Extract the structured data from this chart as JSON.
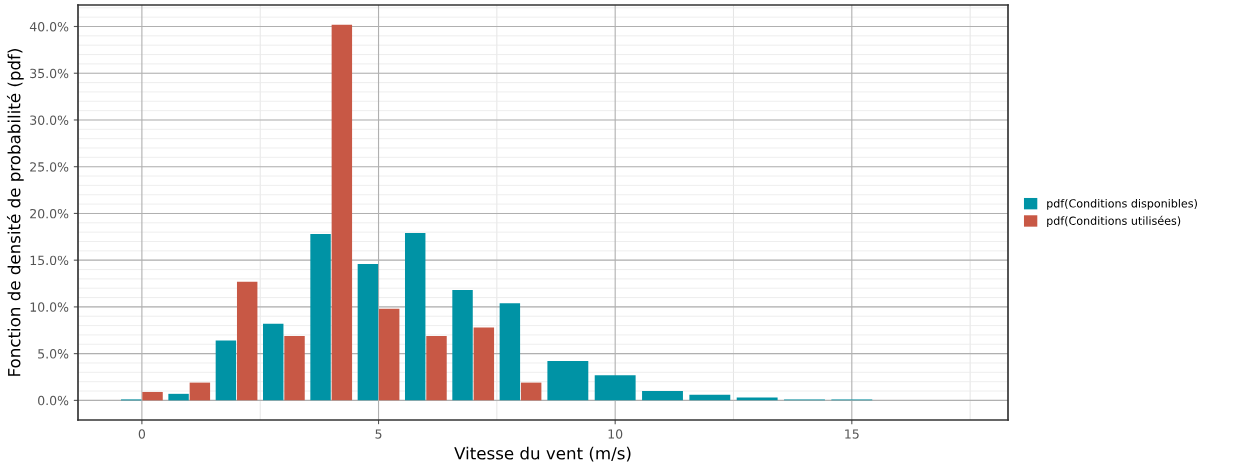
{
  "chart_data": {
    "type": "bar",
    "xlabel": "Vitesse du vent (m/s)",
    "ylabel": "Fonction de densité de probabilité (pdf)",
    "x": [
      0,
      1,
      2,
      3,
      4,
      5,
      6,
      7,
      8,
      9,
      10,
      11,
      12,
      13,
      14,
      15
    ],
    "series": [
      {
        "name": "pdf(Conditions disponibles)",
        "color": "#0093a5",
        "values": [
          0.1,
          0.7,
          6.4,
          8.2,
          17.8,
          14.6,
          17.9,
          11.8,
          10.4,
          4.2,
          2.7,
          1.0,
          0.6,
          0.3,
          0.1,
          0.1
        ]
      },
      {
        "name": "pdf(Conditions utilisées)",
        "color": "#c85845",
        "values": [
          0.9,
          1.9,
          12.7,
          6.9,
          40.2,
          9.8,
          6.9,
          7.8,
          1.9,
          null,
          null,
          null,
          null,
          null,
          null,
          null
        ]
      }
    ],
    "xlim": [
      -1.35,
      18.3
    ],
    "xticks": [
      0,
      5,
      10,
      15
    ],
    "ylim": [
      -2.1,
      42.3
    ],
    "yticks": [
      {
        "value": 0,
        "label": "0.0%"
      },
      {
        "value": 5,
        "label": "5.0%"
      },
      {
        "value": 10,
        "label": "10.0%"
      },
      {
        "value": 15,
        "label": "15.0%"
      },
      {
        "value": 20,
        "label": "20.0%"
      },
      {
        "value": 25,
        "label": "25.0%"
      },
      {
        "value": 30,
        "label": "30.0%"
      },
      {
        "value": 35,
        "label": "35.0%"
      },
      {
        "value": 40,
        "label": "40.0%"
      }
    ],
    "grid": true,
    "legend": "right"
  }
}
